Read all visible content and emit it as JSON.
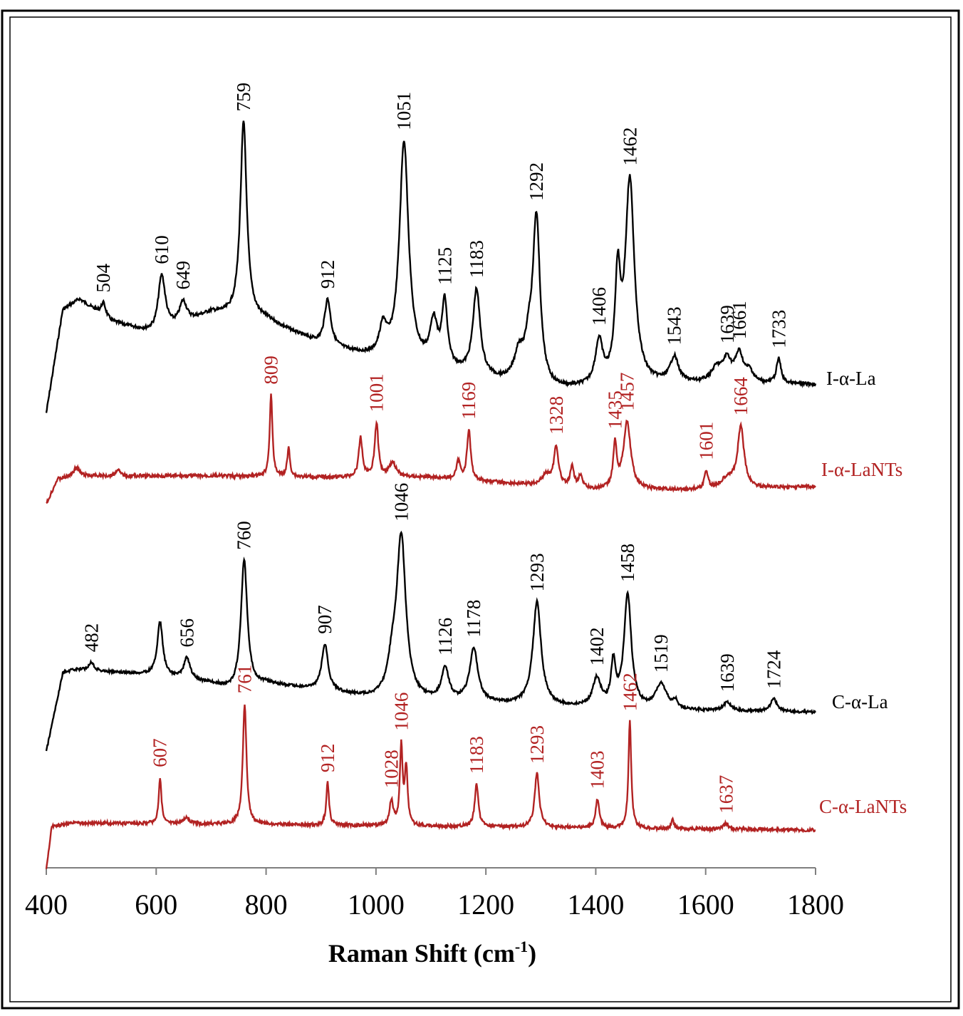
{
  "chart_data": {
    "type": "line",
    "title": "",
    "xlabel": "Raman Shift (cm",
    "xlabel_sup": "-1",
    "xlabel_close": ")",
    "xlim": [
      400,
      1800
    ],
    "x_ticks": [
      "400",
      "600",
      "800",
      "1000",
      "1200",
      "1400",
      "1600",
      "1800"
    ],
    "ylabel": "",
    "y_axis_visible": false,
    "grid": false,
    "legend": "none (series labeled at right end of each trace)",
    "colors": {
      "black": "#000000",
      "red": "#B22222"
    },
    "series": [
      {
        "name": "I-α-La",
        "color": "#000000",
        "peaks": [
          {
            "x": 504,
            "label": "504"
          },
          {
            "x": 610,
            "label": "610"
          },
          {
            "x": 649,
            "label": "649"
          },
          {
            "x": 759,
            "label": "759"
          },
          {
            "x": 912,
            "label": "912"
          },
          {
            "x": 1051,
            "label": "1051"
          },
          {
            "x": 1125,
            "label": "1125"
          },
          {
            "x": 1183,
            "label": "1183"
          },
          {
            "x": 1292,
            "label": "1292"
          },
          {
            "x": 1406,
            "label": "1406"
          },
          {
            "x": 1462,
            "label": "1462"
          },
          {
            "x": 1543,
            "label": "1543"
          },
          {
            "x": 1639,
            "label": "1639"
          },
          {
            "x": 1661,
            "label": "1661"
          },
          {
            "x": 1733,
            "label": "1733"
          }
        ]
      },
      {
        "name": "I-α-LaNTs",
        "color": "#B22222",
        "peaks": [
          {
            "x": 809,
            "label": "809"
          },
          {
            "x": 1001,
            "label": "1001"
          },
          {
            "x": 1169,
            "label": "1169"
          },
          {
            "x": 1328,
            "label": "1328"
          },
          {
            "x": 1435,
            "label": "1435"
          },
          {
            "x": 1457,
            "label": "1457"
          },
          {
            "x": 1601,
            "label": "1601"
          },
          {
            "x": 1664,
            "label": "1664"
          }
        ]
      },
      {
        "name": "C-α-La",
        "color": "#000000",
        "peaks": [
          {
            "x": 482,
            "label": "482"
          },
          {
            "x": 656,
            "label": "656"
          },
          {
            "x": 760,
            "label": "760"
          },
          {
            "x": 907,
            "label": "907"
          },
          {
            "x": 1046,
            "label": "1046"
          },
          {
            "x": 1126,
            "label": "1126"
          },
          {
            "x": 1178,
            "label": "1178"
          },
          {
            "x": 1293,
            "label": "1293"
          },
          {
            "x": 1402,
            "label": "1402"
          },
          {
            "x": 1458,
            "label": "1458"
          },
          {
            "x": 1519,
            "label": "1519"
          },
          {
            "x": 1639,
            "label": "1639"
          },
          {
            "x": 1724,
            "label": "1724"
          }
        ]
      },
      {
        "name": "C-α-LaNTs",
        "color": "#B22222",
        "peaks": [
          {
            "x": 607,
            "label": "607"
          },
          {
            "x": 761,
            "label": "761"
          },
          {
            "x": 912,
            "label": "912"
          },
          {
            "x": 1028,
            "label": "1028"
          },
          {
            "x": 1046,
            "label": "1046"
          },
          {
            "x": 1183,
            "label": "1183"
          },
          {
            "x": 1293,
            "label": "1293"
          },
          {
            "x": 1403,
            "label": "1403"
          },
          {
            "x": 1462,
            "label": "1462"
          },
          {
            "x": 1637,
            "label": "1637"
          }
        ]
      }
    ]
  }
}
